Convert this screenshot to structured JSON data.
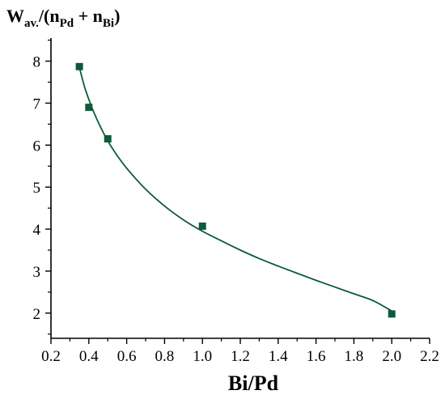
{
  "chart_data": {
    "type": "scatter",
    "xlabel": "Bi/Pd",
    "ylabel": {
      "prefix": "W",
      "sub1": "av.",
      "mid": "/(n",
      "sub2": "Pd",
      "plus": " + n",
      "sub3": "Bi",
      "suffix": ")"
    },
    "xlim": [
      0.2,
      2.2
    ],
    "ylim": [
      1.4,
      8.55
    ],
    "x_ticks": [
      0.2,
      0.4,
      0.6,
      0.8,
      1.0,
      1.2,
      1.4,
      1.6,
      1.8,
      2.0,
      2.2
    ],
    "x_tick_labels": [
      "0.2",
      "0.4",
      "0.6",
      "0.8",
      "1.0",
      "1.2",
      "1.4",
      "1.6",
      "1.8",
      "2.0",
      "2.2"
    ],
    "y_ticks": [
      2,
      3,
      4,
      5,
      6,
      7,
      8
    ],
    "y_tick_labels": [
      "2",
      "3",
      "4",
      "5",
      "6",
      "7",
      "8"
    ],
    "grid": false,
    "series": [
      {
        "points": [
          {
            "x": 0.35,
            "y": 7.87
          },
          {
            "x": 0.4,
            "y": 6.9
          },
          {
            "x": 0.5,
            "y": 6.15
          },
          {
            "x": 1.0,
            "y": 4.07
          },
          {
            "x": 2.0,
            "y": 1.98
          }
        ],
        "color": "#0e5a3a",
        "marker": "square"
      }
    ],
    "fit_curve": {
      "x": [
        0.35,
        0.38,
        0.42,
        0.46,
        0.5,
        0.55,
        0.6,
        0.7,
        0.8,
        0.9,
        1.0,
        1.1,
        1.2,
        1.3,
        1.4,
        1.5,
        1.6,
        1.7,
        1.8,
        1.9,
        2.0
      ],
      "y": [
        7.85,
        7.35,
        6.85,
        6.45,
        6.1,
        5.75,
        5.45,
        4.95,
        4.55,
        4.22,
        3.95,
        3.72,
        3.5,
        3.3,
        3.12,
        2.95,
        2.78,
        2.62,
        2.46,
        2.3,
        2.05
      ],
      "color": "#0e5a3a"
    }
  }
}
